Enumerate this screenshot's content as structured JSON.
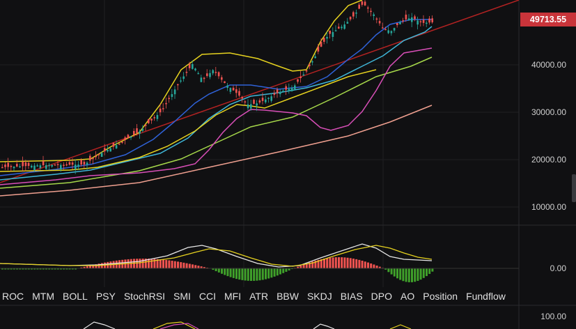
{
  "price_axis": {
    "current_price": "49713.55",
    "ticks": [
      "40000.00",
      "30000.00",
      "20000.00",
      "10000.00"
    ],
    "indicator_tick": "0.00",
    "lower_tick": "100.00"
  },
  "indicator_tabs": [
    "ROC",
    "MTM",
    "BOLL",
    "PSY",
    "StochRSI",
    "SMI",
    "CCI",
    "MFI",
    "ATR",
    "BBW",
    "SKDJ",
    "BIAS",
    "DPO",
    "AO",
    "Position",
    "Fundflow"
  ],
  "colors": {
    "background": "#101012",
    "up": "#26a69a",
    "down": "#ef5350",
    "boll": "#e6d21f",
    "ma_blue": "#2f62d8",
    "ma_cyan": "#3fb6d8",
    "ma_green": "#a6d84a",
    "ma_magenta": "#d94fb8",
    "ma_salmon": "#f0a090",
    "trendline": "#b22222",
    "price_tag": "#c9343a"
  }
}
